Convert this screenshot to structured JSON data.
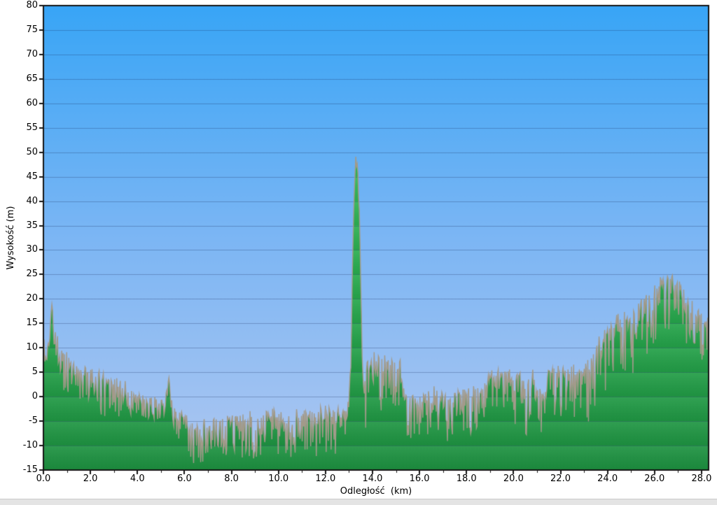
{
  "chart_data": {
    "type": "area",
    "title": "",
    "xlabel": "Odległość  (km)",
    "ylabel": "Wysokość (m)",
    "xlim": [
      0,
      28.3
    ],
    "ylim": [
      -15,
      80
    ],
    "grid": "horizontal",
    "x_tick_values": [
      0,
      2,
      4,
      6,
      8,
      10,
      12,
      14,
      16,
      18,
      20,
      22,
      24,
      26,
      28
    ],
    "x_tick_labels": [
      "0.0",
      "2.0",
      "4.0",
      "6.0",
      "8.0",
      "10.0",
      "12.0",
      "14.0",
      "16.0",
      "18.0",
      "20.0",
      "22.0",
      "24.0",
      "26.0",
      "28.0"
    ],
    "x_minor_tick_values": [
      1,
      3,
      5,
      7,
      9,
      11,
      13,
      15,
      17,
      19,
      21,
      23,
      25,
      27
    ],
    "y_tick_values": [
      80,
      75,
      70,
      65,
      60,
      55,
      50,
      45,
      40,
      35,
      30,
      25,
      20,
      15,
      10,
      5,
      0,
      -5,
      -10,
      -15
    ],
    "y_tick_labels": [
      "80",
      "75",
      "70",
      "65",
      "60",
      "55",
      "50",
      "45",
      "40",
      "35",
      "30",
      "25",
      "20",
      "15",
      "10",
      "5",
      "0",
      "-5",
      "-10",
      "-15"
    ],
    "profile_points": [
      [
        0.0,
        12
      ],
      [
        0.08,
        10.5
      ],
      [
        0.15,
        9.8
      ],
      [
        0.22,
        11.5
      ],
      [
        0.3,
        16
      ],
      [
        0.35,
        19.5
      ],
      [
        0.42,
        17.5
      ],
      [
        0.5,
        14
      ],
      [
        0.58,
        11.5
      ],
      [
        0.7,
        9.5
      ],
      [
        0.85,
        8.7
      ],
      [
        1.0,
        8
      ],
      [
        1.2,
        6.8
      ],
      [
        1.4,
        6.2
      ],
      [
        1.7,
        5.4
      ],
      [
        2.0,
        4.8
      ],
      [
        2.3,
        4.2
      ],
      [
        2.6,
        3.6
      ],
      [
        2.9,
        3.2
      ],
      [
        3.2,
        2.6
      ],
      [
        3.42,
        2.6
      ],
      [
        3.5,
        3.4
      ],
      [
        3.58,
        1.2
      ],
      [
        3.7,
        0.6
      ],
      [
        3.9,
        0.3
      ],
      [
        4.2,
        0
      ],
      [
        4.5,
        -0.4
      ],
      [
        4.8,
        -0.5
      ],
      [
        5.05,
        -0.4
      ],
      [
        5.2,
        0
      ],
      [
        5.27,
        3.3
      ],
      [
        5.35,
        3.6
      ],
      [
        5.42,
        0
      ],
      [
        5.5,
        -1.8
      ],
      [
        5.65,
        -2.8
      ],
      [
        5.85,
        -3.4
      ],
      [
        6.1,
        -4.4
      ],
      [
        6.35,
        -5.3
      ],
      [
        6.5,
        -6.2
      ],
      [
        6.65,
        -6.4
      ],
      [
        6.8,
        -5.6
      ],
      [
        7.0,
        -5.1
      ],
      [
        7.3,
        -4.7
      ],
      [
        7.6,
        -4.5
      ],
      [
        7.9,
        -4.7
      ],
      [
        8.2,
        -4.4
      ],
      [
        8.5,
        -4.6
      ],
      [
        8.8,
        -4.3
      ],
      [
        9.1,
        -4.5
      ],
      [
        9.4,
        -4.1
      ],
      [
        9.65,
        -3.5
      ],
      [
        9.9,
        -3.9
      ],
      [
        10.2,
        -4.3
      ],
      [
        10.5,
        -4.1
      ],
      [
        10.8,
        -3.8
      ],
      [
        11.1,
        -3.5
      ],
      [
        11.35,
        -3.2
      ],
      [
        11.6,
        -3.7
      ],
      [
        11.85,
        -3.4
      ],
      [
        12.1,
        -3.1
      ],
      [
        12.35,
        -3.5
      ],
      [
        12.6,
        -3.3
      ],
      [
        12.85,
        -3.2
      ],
      [
        12.95,
        -1.5
      ],
      [
        13.02,
        1.5
      ],
      [
        13.08,
        8
      ],
      [
        13.12,
        18
      ],
      [
        13.16,
        30
      ],
      [
        13.19,
        36
      ],
      [
        13.22,
        41
      ],
      [
        13.25,
        44
      ],
      [
        13.27,
        47
      ],
      [
        13.3,
        50.5
      ],
      [
        13.32,
        47
      ],
      [
        13.34,
        49
      ],
      [
        13.37,
        46
      ],
      [
        13.4,
        44
      ],
      [
        13.43,
        40
      ],
      [
        13.46,
        34
      ],
      [
        13.5,
        25
      ],
      [
        13.54,
        14
      ],
      [
        13.58,
        5
      ],
      [
        13.62,
        2.2
      ],
      [
        13.68,
        2.8
      ],
      [
        13.75,
        6.2
      ],
      [
        13.85,
        7.4
      ],
      [
        14.0,
        7.8
      ],
      [
        14.15,
        7.3
      ],
      [
        14.3,
        7.9
      ],
      [
        14.45,
        7.5
      ],
      [
        14.6,
        8.1
      ],
      [
        14.75,
        7.6
      ],
      [
        14.9,
        8.2
      ],
      [
        15.05,
        7.9
      ],
      [
        15.18,
        7.2
      ],
      [
        15.26,
        3
      ],
      [
        15.35,
        0.8
      ],
      [
        15.5,
        0.2
      ],
      [
        15.65,
        -0.6
      ],
      [
        15.8,
        -1.1
      ],
      [
        15.95,
        -0.4
      ],
      [
        16.1,
        -1.0
      ],
      [
        16.25,
        -0.8
      ],
      [
        16.4,
        -0.2
      ],
      [
        16.55,
        0.6
      ],
      [
        16.7,
        1.2
      ],
      [
        16.85,
        0.6
      ],
      [
        17.0,
        0
      ],
      [
        17.15,
        -0.6
      ],
      [
        17.3,
        -1.3
      ],
      [
        17.45,
        -0.5
      ],
      [
        17.6,
        0.3
      ],
      [
        17.8,
        0.8
      ],
      [
        18.0,
        1
      ],
      [
        18.2,
        0.8
      ],
      [
        18.4,
        1.2
      ],
      [
        18.6,
        1.4
      ],
      [
        18.75,
        2
      ],
      [
        18.85,
        3.8
      ],
      [
        19.0,
        4.5
      ],
      [
        19.2,
        4.2
      ],
      [
        19.4,
        4.6
      ],
      [
        19.6,
        4.3
      ],
      [
        19.8,
        4.6
      ],
      [
        19.95,
        4.4
      ],
      [
        20.02,
        2
      ],
      [
        20.1,
        4.2
      ],
      [
        20.3,
        4.5
      ],
      [
        20.45,
        4.1
      ],
      [
        20.52,
        0.3
      ],
      [
        20.6,
        3.8
      ],
      [
        20.75,
        4.6
      ],
      [
        20.9,
        5.4
      ],
      [
        21.0,
        5
      ],
      [
        21.1,
        4.4
      ],
      [
        21.22,
        0.2
      ],
      [
        21.3,
        -1
      ],
      [
        21.4,
        2.5
      ],
      [
        21.5,
        4.4
      ],
      [
        21.65,
        4.7
      ],
      [
        21.8,
        4.9
      ],
      [
        22.0,
        5.2
      ],
      [
        22.2,
        4.9
      ],
      [
        22.4,
        5.4
      ],
      [
        22.6,
        5
      ],
      [
        22.8,
        4.9
      ],
      [
        23.0,
        5.3
      ],
      [
        23.15,
        6.2
      ],
      [
        23.3,
        7.5
      ],
      [
        23.5,
        9.5
      ],
      [
        23.7,
        11
      ],
      [
        23.9,
        12.5
      ],
      [
        24.1,
        13.8
      ],
      [
        24.3,
        14.6
      ],
      [
        24.6,
        15.4
      ],
      [
        24.9,
        16
      ],
      [
        25.2,
        17
      ],
      [
        25.5,
        18.4
      ],
      [
        25.8,
        19.6
      ],
      [
        26.0,
        21
      ],
      [
        26.2,
        22.2
      ],
      [
        26.4,
        23.6
      ],
      [
        26.55,
        24.6
      ],
      [
        26.7,
        24.2
      ],
      [
        26.85,
        23.6
      ],
      [
        27.0,
        23
      ],
      [
        27.15,
        22.2
      ],
      [
        27.3,
        20.8
      ],
      [
        27.45,
        19.2
      ],
      [
        27.6,
        18
      ],
      [
        27.75,
        17.3
      ],
      [
        27.9,
        16.8
      ],
      [
        28.0,
        16.4
      ],
      [
        28.15,
        15.6
      ],
      [
        28.3,
        15.4
      ]
    ],
    "noise": {
      "step_km": 0.03,
      "default_amp": 0.75,
      "seed": 987654,
      "zones": [
        [
          0,
          0.55,
          0.5
        ],
        [
          0.55,
          3.6,
          0.7
        ],
        [
          3.6,
          5.2,
          0.4
        ],
        [
          5.2,
          5.45,
          0.3
        ],
        [
          5.45,
          6.2,
          0.6
        ],
        [
          6.2,
          12.9,
          0.8
        ],
        [
          12.9,
          13.7,
          0.25
        ],
        [
          13.7,
          15.25,
          1.0
        ],
        [
          15.25,
          18.6,
          0.8
        ],
        [
          18.6,
          20.0,
          0.6
        ],
        [
          20.0,
          23.0,
          0.9
        ],
        [
          23.0,
          26.9,
          1.1
        ],
        [
          26.9,
          28.3,
          0.9
        ]
      ]
    },
    "colors": {
      "sky_top": "#38a5f6",
      "sky_mid": "#7cb6f4",
      "sky_bottom": "#aec7f1",
      "fill_top": "#37bd5e",
      "fill_mid": "#29ad4f",
      "fill_bottom": "#1d9040",
      "edge_line": "#a29a8a",
      "gridline": "rgba(25,45,95,0.30)",
      "axis": "#141414",
      "label": "#000000",
      "bottom_bar": "#e4e4e4"
    }
  }
}
